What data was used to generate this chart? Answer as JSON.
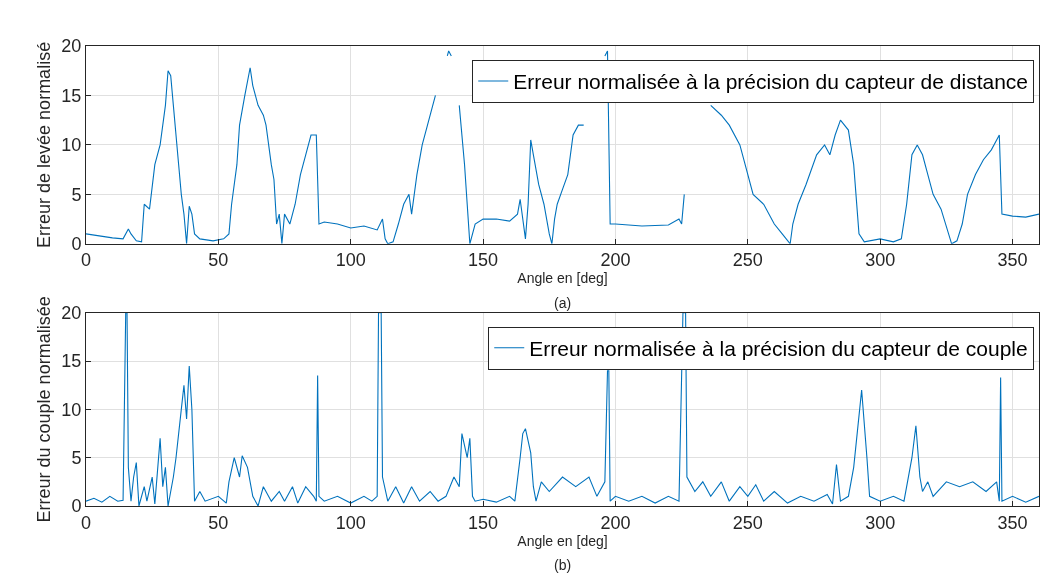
{
  "chart_data": [
    {
      "type": "line",
      "xlabel": "Angle en [deg]",
      "ylabel": "Erreur de levée normalisé",
      "annotations": [
        "(a)"
      ],
      "xlim": [
        0,
        360
      ],
      "xticks": [
        0,
        50,
        100,
        150,
        200,
        250,
        300,
        350
      ],
      "ylim": [
        0,
        20
      ],
      "yticks": [
        0,
        5,
        10,
        15,
        20
      ],
      "grid": true,
      "legend": "top right",
      "marker": "none",
      "line_style": "solid",
      "series": [
        {
          "name": "Erreur normalisée à la précision du capteur de distance",
          "color": "#0072bd",
          "x": [
            0,
            5,
            10,
            14,
            16,
            17,
            19,
            21,
            22,
            24,
            26,
            28,
            30,
            31,
            32,
            33,
            35,
            36,
            37,
            38,
            39,
            40,
            41,
            43,
            48,
            52,
            54,
            55,
            57,
            58,
            60,
            62,
            63,
            65,
            67,
            68,
            70,
            71,
            72,
            73,
            74,
            75,
            77,
            79,
            81,
            83,
            85,
            87,
            88,
            90,
            95,
            100,
            105,
            110,
            112,
            113,
            114,
            116,
            118,
            120,
            122,
            123,
            125,
            127,
            129,
            132,
            134,
            136.5,
            137,
            138,
            139,
            141,
            143,
            144,
            145,
            147,
            150,
            155,
            160,
            163,
            164,
            166,
            167,
            168,
            169,
            171,
            173,
            175,
            176,
            177,
            178,
            180,
            182,
            184,
            186,
            188,
            190,
            193,
            196,
            197,
            198,
            200,
            210,
            220,
            224,
            225,
            226,
            227,
            230,
            233,
            236,
            240,
            243,
            247,
            249,
            252,
            256,
            260,
            263,
            266,
            267,
            269,
            272,
            276,
            279,
            281,
            283,
            285,
            288,
            290,
            292,
            294,
            300,
            305,
            308,
            310,
            312,
            314,
            316,
            318,
            320,
            323,
            327,
            329,
            331,
            333,
            336,
            339,
            342,
            344,
            345,
            346,
            350,
            355,
            360
          ],
          "values": [
            1,
            0.8,
            0.6,
            0.5,
            1.5,
            1,
            0.3,
            0.2,
            4,
            3.5,
            8,
            10,
            14,
            17.5,
            17,
            14,
            8,
            5,
            3,
            0,
            3.8,
            3,
            1,
            0.5,
            0.3,
            0.5,
            1,
            4,
            8,
            12,
            15,
            17.8,
            16,
            14,
            13,
            12,
            8,
            6.5,
            2,
            3,
            0,
            3,
            2,
            4,
            7,
            9,
            11,
            11,
            2,
            2.2,
            2,
            1.6,
            1.8,
            1.4,
            2.5,
            0.5,
            0,
            0.2,
            2,
            4,
            5,
            3,
            7,
            10,
            12,
            15,
            null,
            19,
            19.5,
            19,
            null,
            14,
            8,
            4,
            0,
            2,
            2.5,
            2.5,
            2.3,
            3,
            4.5,
            0.5,
            4,
            10.5,
            9,
            6,
            4,
            1,
            0,
            2.5,
            4,
            5.5,
            7,
            11,
            12,
            12,
            null,
            null,
            19,
            19.5,
            2,
            2,
            1.8,
            1.9,
            2.5,
            2,
            5,
            null,
            null,
            null,
            14,
            13,
            12,
            10,
            8,
            5,
            4,
            2,
            1,
            0,
            2,
            4,
            6,
            9,
            10,
            9,
            11,
            12.5,
            11.5,
            8,
            1,
            0.2,
            0.5,
            0.2,
            0.5,
            4,
            9,
            10,
            9,
            7,
            5,
            3.5,
            0,
            0.3,
            2,
            5,
            7,
            8.5,
            9.5,
            10.5,
            11,
            3,
            2.8,
            2.7,
            3
          ]
        }
      ]
    },
    {
      "type": "line",
      "xlabel": "Angle en [deg]",
      "ylabel": "Erreur du couple normalisée",
      "annotations": [
        "(b)"
      ],
      "xlim": [
        0,
        360
      ],
      "xticks": [
        0,
        50,
        100,
        150,
        200,
        250,
        300,
        350
      ],
      "ylim": [
        0,
        20
      ],
      "yticks": [
        0,
        5,
        10,
        15,
        20
      ],
      "grid": true,
      "legend": "top right",
      "marker": "none",
      "line_style": "solid",
      "series": [
        {
          "name": "Erreur normalisée à la précision du capteur de couple",
          "color": "#0072bd",
          "x": [
            0,
            3,
            6,
            9,
            12,
            14,
            15,
            15.5,
            16,
            17,
            18,
            19,
            20,
            22,
            23,
            25,
            26,
            28,
            29,
            30,
            31,
            33,
            34,
            36,
            37,
            38,
            39,
            40,
            41,
            43,
            45,
            50,
            53,
            54,
            56,
            58,
            59,
            61,
            63,
            65,
            67,
            70,
            73,
            75,
            78,
            80,
            83,
            86,
            87,
            87.5,
            88,
            90,
            95,
            100,
            105,
            108,
            110,
            110.5,
            111.5,
            112,
            114,
            117,
            120,
            123,
            126,
            130,
            133,
            136,
            139,
            141,
            142,
            144,
            145,
            146,
            147,
            150,
            155,
            160,
            162,
            164,
            165,
            166,
            168,
            169,
            170,
            172,
            175,
            180,
            185,
            190,
            193,
            196,
            197,
            197.5,
            198,
            200,
            205,
            210,
            215,
            220,
            224,
            225.5,
            226.5,
            227,
            230,
            233,
            236,
            240,
            243,
            247,
            250,
            253,
            256,
            260,
            265,
            270,
            275,
            280,
            282,
            283.5,
            285,
            288,
            290,
            293,
            295,
            296,
            300,
            305,
            309,
            312,
            313.5,
            315,
            316,
            318,
            320,
            325,
            330,
            335,
            340,
            344,
            345,
            345.5,
            346,
            350,
            355,
            360
          ],
          "values": [
            0.5,
            0.8,
            0.4,
            1,
            0.5,
            0.6,
            20,
            20,
            4,
            0.5,
            3,
            4.5,
            0,
            2,
            0.5,
            3,
            0.2,
            7,
            2,
            4,
            0,
            3,
            5,
            10,
            12.5,
            9,
            14.5,
            10,
            0.5,
            1.5,
            0.5,
            1,
            0.3,
            2.5,
            5,
            3,
            5.2,
            4,
            1,
            0,
            2,
            0.5,
            1.5,
            0.5,
            2,
            0.3,
            2,
            1,
            0.5,
            13.5,
            1,
            0.5,
            1,
            0.3,
            1,
            0.5,
            1,
            20,
            20,
            3,
            0.5,
            2,
            0.3,
            2,
            0.5,
            1.5,
            0.5,
            1,
            3,
            2,
            7.5,
            5,
            7,
            1,
            0.5,
            0.7,
            0.4,
            1,
            0.5,
            5,
            7.5,
            8,
            5.5,
            2,
            0.5,
            2.5,
            1.5,
            3,
            2,
            3,
            1,
            2.5,
            14,
            14,
            0.5,
            1,
            0.5,
            1,
            0.3,
            1,
            0.5,
            20,
            20,
            3,
            1.5,
            2.5,
            1,
            2.5,
            0.5,
            2,
            1,
            2.2,
            0.5,
            1.5,
            0.3,
            1,
            0.5,
            1.2,
            0.2,
            4.3,
            0.5,
            1,
            4,
            12,
            5,
            1,
            0.5,
            1,
            0.5,
            5,
            8.3,
            3,
            1.5,
            2.5,
            1,
            2.5,
            2,
            2.5,
            1.5,
            2.5,
            0.5,
            13.3,
            0.5,
            1,
            0.4,
            1
          ]
        }
      ]
    }
  ]
}
